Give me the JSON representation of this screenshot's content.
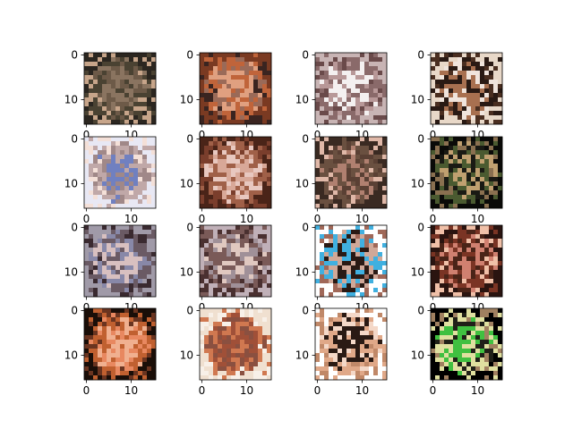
{
  "chart_data": {
    "type": "heatmap",
    "grid": {
      "rows": 4,
      "cols": 4
    },
    "image_resolution": [
      16,
      16
    ],
    "axis_ticks": {
      "x": [
        "0",
        "10"
      ],
      "y": [
        "0",
        "10"
      ]
    },
    "axis_range": {
      "x": [
        -0.5,
        15.5
      ],
      "y": [
        15.5,
        -0.5
      ]
    },
    "panels": [
      {
        "row": 0,
        "col": 0,
        "palette": "dark-olive",
        "colors": [
          "#2b2620",
          "#4a4232",
          "#8a7460",
          "#c7a58a",
          "#6d5a48"
        ]
      },
      {
        "row": 0,
        "col": 1,
        "palette": "rust-orange",
        "colors": [
          "#7a3a22",
          "#c0643a",
          "#e0a080",
          "#3a2420",
          "#9a6a58"
        ]
      },
      {
        "row": 0,
        "col": 2,
        "palette": "pale-mauve",
        "colors": [
          "#c8b4b4",
          "#8a6a6a",
          "#f4f0f0",
          "#6a4a4a",
          "#b89898"
        ]
      },
      {
        "row": 0,
        "col": 3,
        "palette": "cream-dark",
        "colors": [
          "#e8d8c8",
          "#2a1a14",
          "#a87050",
          "#4a2e20",
          "#f0e4dc"
        ]
      },
      {
        "row": 1,
        "col": 0,
        "palette": "light-blue-white",
        "colors": [
          "#e8e8f4",
          "#c0a8a8",
          "#7080c0",
          "#f4e0d8",
          "#a08888"
        ]
      },
      {
        "row": 1,
        "col": 1,
        "palette": "brown-pink",
        "colors": [
          "#4a2418",
          "#a06048",
          "#d8a898",
          "#7a3e2c",
          "#e8c8c0"
        ]
      },
      {
        "row": 1,
        "col": 2,
        "palette": "dark-brown",
        "colors": [
          "#3a2a22",
          "#6a5040",
          "#b08070",
          "#e0b8a8",
          "#5a4034"
        ]
      },
      {
        "row": 1,
        "col": 3,
        "palette": "black-green",
        "colors": [
          "#0a0a08",
          "#4a5a30",
          "#c0a070",
          "#8a7050",
          "#1a1a14"
        ]
      },
      {
        "row": 2,
        "col": 0,
        "palette": "grey-blue",
        "colors": [
          "#a09aa8",
          "#6a5a64",
          "#d8c0c0",
          "#3a2a30",
          "#8888a8"
        ]
      },
      {
        "row": 2,
        "col": 1,
        "palette": "mauve-grey",
        "colors": [
          "#c0b0b8",
          "#7a5a58",
          "#e0c8c0",
          "#4a3030",
          "#a09098"
        ]
      },
      {
        "row": 2,
        "col": 2,
        "palette": "cyan-dark",
        "colors": [
          "#ffffff",
          "#40b0e0",
          "#2a1a14",
          "#a06858",
          "#d0a898"
        ]
      },
      {
        "row": 2,
        "col": 3,
        "palette": "dark-red",
        "colors": [
          "#2a1410",
          "#7a3424",
          "#d08070",
          "#f0c0a8",
          "#4a2418"
        ]
      },
      {
        "row": 3,
        "col": 0,
        "palette": "dark-orange",
        "colors": [
          "#1a0e08",
          "#c06030",
          "#f0b090",
          "#6a3420",
          "#e88860"
        ]
      },
      {
        "row": 3,
        "col": 1,
        "palette": "peach-white",
        "colors": [
          "#f0e0d0",
          "#d07850",
          "#a05038",
          "#f8f0e8",
          "#8a5040"
        ]
      },
      {
        "row": 3,
        "col": 2,
        "palette": "white-peach",
        "colors": [
          "#ffffff",
          "#e0a888",
          "#2a1a14",
          "#c08868",
          "#f4d8c8"
        ]
      },
      {
        "row": 3,
        "col": 3,
        "palette": "black-yellow-green",
        "colors": [
          "#000000",
          "#e0e0a0",
          "#40c040",
          "#a08060",
          "#202018"
        ]
      }
    ]
  }
}
